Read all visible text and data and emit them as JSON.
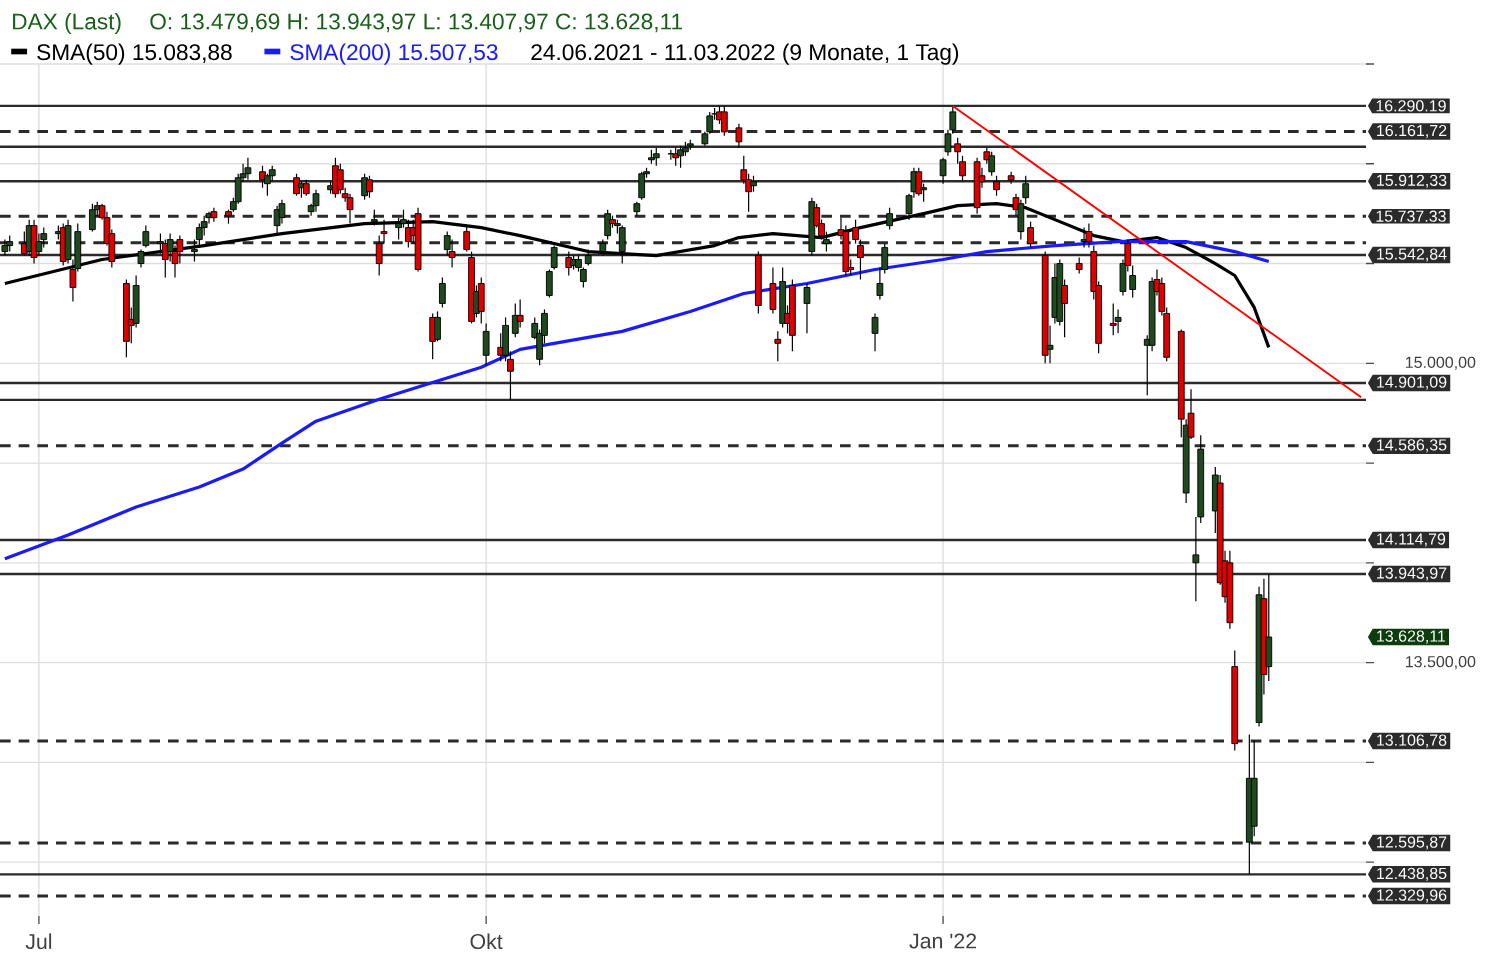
{
  "chart_data": {
    "type": "candlestick",
    "title": "DAX (Last)",
    "subtitle": "O: 13.479,69  H: 13.943,97  L: 13.407,97  C: 13.628,11",
    "x": [
      "2021-06-24",
      "2021-06-25",
      "2021-06-28",
      "2021-06-29",
      "2021-06-30",
      "2021-07-01",
      "2021-07-02",
      "2021-07-05",
      "2021-07-06",
      "2021-07-07",
      "2021-07-08",
      "2021-07-09",
      "2021-07-12",
      "2021-07-13",
      "2021-07-14",
      "2021-07-15",
      "2021-07-16",
      "2021-07-19",
      "2021-07-20",
      "2021-07-21",
      "2021-07-22",
      "2021-07-23",
      "2021-07-26",
      "2021-07-27",
      "2021-07-28",
      "2021-07-29",
      "2021-07-30",
      "2021-08-02",
      "2021-08-03",
      "2021-08-04",
      "2021-08-05",
      "2021-08-06",
      "2021-08-09",
      "2021-08-10",
      "2021-08-11",
      "2021-08-12",
      "2021-08-13",
      "2021-08-16",
      "2021-08-17",
      "2021-08-18",
      "2021-08-19",
      "2021-08-20",
      "2021-08-23",
      "2021-08-24",
      "2021-08-25",
      "2021-08-26",
      "2021-08-27",
      "2021-08-30",
      "2021-08-31",
      "2021-09-01",
      "2021-09-02",
      "2021-09-03",
      "2021-09-06",
      "2021-09-07",
      "2021-09-08",
      "2021-09-09",
      "2021-09-10",
      "2021-09-13",
      "2021-09-14",
      "2021-09-15",
      "2021-09-16",
      "2021-09-17",
      "2021-09-20",
      "2021-09-21",
      "2021-09-22",
      "2021-09-23",
      "2021-09-24",
      "2021-09-27",
      "2021-09-28",
      "2021-09-29",
      "2021-09-30",
      "2021-10-01",
      "2021-10-04",
      "2021-10-05",
      "2021-10-06",
      "2021-10-07",
      "2021-10-08",
      "2021-10-11",
      "2021-10-12",
      "2021-10-13",
      "2021-10-14",
      "2021-10-15",
      "2021-10-18",
      "2021-10-19",
      "2021-10-20",
      "2021-10-21",
      "2021-10-22",
      "2021-10-25",
      "2021-10-26",
      "2021-10-27",
      "2021-10-28",
      "2021-10-29",
      "2021-11-01",
      "2021-11-02",
      "2021-11-03",
      "2021-11-04",
      "2021-11-05",
      "2021-11-08",
      "2021-11-09",
      "2021-11-10",
      "2021-11-11",
      "2021-11-12",
      "2021-11-15",
      "2021-11-16",
      "2021-11-17",
      "2021-11-18",
      "2021-11-19",
      "2021-11-22",
      "2021-11-23",
      "2021-11-24",
      "2021-11-25",
      "2021-11-26",
      "2021-11-29",
      "2021-11-30",
      "2021-12-01",
      "2021-12-02",
      "2021-12-03",
      "2021-12-06",
      "2021-12-07",
      "2021-12-08",
      "2021-12-09",
      "2021-12-10",
      "2021-12-13",
      "2021-12-14",
      "2021-12-15",
      "2021-12-16",
      "2021-12-17",
      "2021-12-20",
      "2021-12-21",
      "2021-12-22",
      "2021-12-23",
      "2021-12-27",
      "2021-12-28",
      "2021-12-29",
      "2021-12-30",
      "2022-01-03",
      "2022-01-04",
      "2022-01-05",
      "2022-01-06",
      "2022-01-07",
      "2022-01-10",
      "2022-01-11",
      "2022-01-12",
      "2022-01-13",
      "2022-01-14",
      "2022-01-17",
      "2022-01-18",
      "2022-01-19",
      "2022-01-20",
      "2022-01-21",
      "2022-01-24",
      "2022-01-25",
      "2022-01-26",
      "2022-01-27",
      "2022-01-28",
      "2022-01-31",
      "2022-02-01",
      "2022-02-02",
      "2022-02-03",
      "2022-02-04",
      "2022-02-07",
      "2022-02-08",
      "2022-02-09",
      "2022-02-10",
      "2022-02-11",
      "2022-02-14",
      "2022-02-15",
      "2022-02-16",
      "2022-02-17",
      "2022-02-18",
      "2022-02-21",
      "2022-02-22",
      "2022-02-23",
      "2022-02-24",
      "2022-02-25",
      "2022-02-28",
      "2022-03-01",
      "2022-03-02",
      "2022-03-03",
      "2022-03-04",
      "2022-03-07",
      "2022-03-08",
      "2022-03-09",
      "2022-03-10",
      "2022-03-11"
    ],
    "ohlc": [
      [
        15560,
        15620,
        15540,
        15590
      ],
      [
        15590,
        15640,
        15560,
        15610
      ],
      [
        15600,
        15660,
        15540,
        15550
      ],
      [
        15560,
        15720,
        15540,
        15690
      ],
      [
        15690,
        15720,
        15500,
        15530
      ],
      [
        15560,
        15650,
        15540,
        15610
      ],
      [
        15620,
        15680,
        15580,
        15650
      ],
      [
        15650,
        15690,
        15620,
        15660
      ],
      [
        15680,
        15700,
        15490,
        15510
      ],
      [
        15520,
        15720,
        15500,
        15690
      ],
      [
        15470,
        15520,
        15310,
        15380
      ],
      [
        15475,
        15700,
        15460,
        15660
      ],
      [
        15670,
        15800,
        15660,
        15770
      ],
      [
        15770,
        15810,
        15740,
        15790
      ],
      [
        15790,
        15800,
        15720,
        15730
      ],
      [
        15730,
        15760,
        15590,
        15600
      ],
      [
        15650,
        15670,
        15480,
        15510
      ],
      [
        15400,
        15420,
        15030,
        15110
      ],
      [
        15220,
        15280,
        15100,
        15190
      ],
      [
        15200,
        15440,
        15180,
        15390
      ],
      [
        15500,
        15570,
        15480,
        15560
      ],
      [
        15590,
        15690,
        15580,
        15660
      ],
      [
        15600,
        15650,
        15550,
        15610
      ],
      [
        15600,
        15620,
        15430,
        15520
      ],
      [
        15560,
        15650,
        15510,
        15620
      ],
      [
        15560,
        15590,
        15430,
        15500
      ],
      [
        15620,
        15640,
        15500,
        15560
      ],
      [
        15560,
        15620,
        15510,
        15570
      ],
      [
        15620,
        15700,
        15580,
        15680
      ],
      [
        15680,
        15740,
        15640,
        15710
      ],
      [
        15730,
        15760,
        15700,
        15750
      ],
      [
        15760,
        15780,
        15710,
        15730
      ],
      [
        15760,
        15770,
        15700,
        15740
      ],
      [
        15770,
        15830,
        15760,
        15810
      ],
      [
        15810,
        15950,
        15800,
        15930
      ],
      [
        15930,
        16000,
        15910,
        15950
      ],
      [
        15950,
        16030,
        15920,
        15980
      ],
      [
        15960,
        15990,
        15880,
        15920
      ],
      [
        15900,
        15950,
        15840,
        15940
      ],
      [
        15940,
        15990,
        15910,
        15970
      ],
      [
        15690,
        15790,
        15650,
        15770
      ],
      [
        15730,
        15820,
        15700,
        15800
      ],
      [
        15930,
        15950,
        15840,
        15850
      ],
      [
        15880,
        15910,
        15830,
        15900
      ],
      [
        15900,
        15920,
        15840,
        15850
      ],
      [
        15760,
        15800,
        15740,
        15790
      ],
      [
        15790,
        15870,
        15760,
        15850
      ],
      [
        15870,
        15910,
        15850,
        15890
      ],
      [
        15990,
        16030,
        15830,
        15850
      ],
      [
        15970,
        16000,
        15850,
        15870
      ],
      [
        15850,
        15880,
        15810,
        15830
      ],
      [
        15830,
        15850,
        15700,
        15770
      ],
      [
        15840,
        15950,
        15820,
        15930
      ],
      [
        15920,
        15940,
        15830,
        15860
      ],
      [
        15710,
        15770,
        15690,
        15720
      ],
      [
        15600,
        15640,
        15440,
        15500
      ],
      [
        15660,
        15720,
        15600,
        15650
      ],
      [
        15680,
        15730,
        15620,
        15700
      ],
      [
        15700,
        15770,
        15680,
        15720
      ],
      [
        15680,
        15720,
        15580,
        15610
      ],
      [
        15680,
        15720,
        15600,
        15640
      ],
      [
        15750,
        15780,
        15460,
        15470
      ],
      [
        15230,
        15250,
        15020,
        15110
      ],
      [
        15120,
        15260,
        15110,
        15230
      ],
      [
        15300,
        15430,
        15280,
        15400
      ],
      [
        15570,
        15660,
        15540,
        15640
      ],
      [
        15560,
        15620,
        15480,
        15530
      ],
      [
        15660,
        15690,
        15560,
        15570
      ],
      [
        15530,
        15560,
        15200,
        15210
      ],
      [
        15250,
        15390,
        15230,
        15360
      ],
      [
        15400,
        15430,
        15200,
        15260
      ],
      [
        15040,
        15200,
        14990,
        15160
      ],
      [
        15080,
        15150,
        15010,
        15040
      ],
      [
        15040,
        15230,
        15010,
        15190
      ],
      [
        15020,
        15060,
        14817,
        14960
      ],
      [
        15150,
        15300,
        15130,
        15240
      ],
      [
        15240,
        15320,
        15180,
        15210
      ],
      [
        15130,
        15230,
        15120,
        15200
      ],
      [
        15020,
        15170,
        14990,
        15150
      ],
      [
        15140,
        15270,
        15100,
        15250
      ],
      [
        15340,
        15470,
        15330,
        15460
      ],
      [
        15480,
        15590,
        15470,
        15580
      ],
      [
        15530,
        15560,
        15440,
        15480
      ],
      [
        15490,
        15540,
        15470,
        15520
      ],
      [
        15480,
        15540,
        15460,
        15520
      ],
      [
        15410,
        15480,
        15380,
        15470
      ],
      [
        15500,
        15570,
        15490,
        15540
      ],
      [
        15560,
        15620,
        15540,
        15600
      ],
      [
        15640,
        15770,
        15620,
        15750
      ],
      [
        15720,
        15740,
        15680,
        15700
      ],
      [
        15690,
        15720,
        15650,
        15700
      ],
      [
        15560,
        15690,
        15500,
        15680
      ],
      [
        15760,
        15810,
        15740,
        15800
      ],
      [
        15830,
        15960,
        15820,
        15950
      ],
      [
        15950,
        15980,
        15930,
        15960
      ],
      [
        16020,
        16070,
        16000,
        16030
      ],
      [
        16030,
        16080,
        15990,
        16050
      ],
      [
        16050,
        16070,
        16020,
        16050
      ],
      [
        16050,
        16080,
        15990,
        16030
      ],
      [
        16040,
        16090,
        15980,
        16070
      ],
      [
        16060,
        16110,
        16040,
        16080
      ],
      [
        16090,
        16120,
        16070,
        16100
      ],
      [
        16100,
        16160,
        16090,
        16150
      ],
      [
        16160,
        16260,
        16150,
        16240
      ],
      [
        16250,
        16280,
        16220,
        16250
      ],
      [
        16260,
        16290.19,
        16200,
        16220
      ],
      [
        16260,
        16290,
        16140,
        16160
      ],
      [
        16180,
        16200,
        16080,
        16110
      ],
      [
        15970,
        16040,
        15900,
        15920
      ],
      [
        15920,
        15950,
        15760,
        15860
      ],
      [
        15890,
        15940,
        15860,
        15910
      ],
      [
        15540,
        15560,
        15250,
        15290
      ],
      [
        15400,
        15480,
        15250,
        15270
      ],
      [
        15120,
        15160,
        15010,
        15100
      ],
      [
        15200,
        15480,
        15180,
        15410
      ],
      [
        15250,
        15290,
        15150,
        15200
      ],
      [
        15390,
        15420,
        15060,
        15140
      ],
      [
        15300,
        15400,
        15150,
        15380
      ],
      [
        15560,
        15830,
        15540,
        15810
      ],
      [
        15780,
        15800,
        15680,
        15690
      ],
      [
        15700,
        15720,
        15620,
        15640
      ],
      [
        15600,
        15660,
        15560,
        15620
      ],
      [
        15670,
        15730,
        15620,
        15640
      ],
      [
        15660,
        15690,
        15440,
        15460
      ],
      [
        15480,
        15520,
        15440,
        15470
      ],
      [
        15680,
        15720,
        15600,
        15620
      ],
      [
        15590,
        15620,
        15420,
        15530
      ],
      [
        15150,
        15250,
        15060,
        15230
      ],
      [
        15340,
        15480,
        15320,
        15400
      ],
      [
        15470,
        15600,
        15450,
        15580
      ],
      [
        15690,
        15780,
        15670,
        15750
      ],
      [
        15750,
        15850,
        15720,
        15840
      ],
      [
        15860,
        15980,
        15830,
        15960
      ],
      [
        15960,
        15980,
        15840,
        15850
      ],
      [
        15870,
        15900,
        15810,
        15880
      ],
      [
        15940,
        16030,
        15900,
        16020
      ],
      [
        16060,
        16170,
        16040,
        16150
      ],
      [
        16170,
        16285,
        16150,
        16260
      ],
      [
        16100,
        16130,
        16000,
        16060
      ],
      [
        16010,
        16040,
        15910,
        15940
      ],
      [
        16010,
        16030,
        15750,
        15780
      ],
      [
        15940,
        15980,
        15880,
        15910
      ],
      [
        16060,
        16080,
        16000,
        16020
      ],
      [
        15960,
        16060,
        15940,
        16040
      ],
      [
        15910,
        15940,
        15840,
        15870
      ],
      [
        15940,
        15960,
        15900,
        15920
      ],
      [
        15830,
        15850,
        15740,
        15770
      ],
      [
        15660,
        15820,
        15620,
        15800
      ],
      [
        15830,
        15940,
        15800,
        15900
      ],
      [
        15680,
        15710,
        15580,
        15600
      ],
      [
        15540,
        15560,
        15000,
        15040
      ],
      [
        15070,
        15190,
        15000,
        15090
      ],
      [
        15230,
        15500,
        15200,
        15430
      ],
      [
        15210,
        15520,
        15190,
        15500
      ],
      [
        15390,
        15420,
        15130,
        15300
      ],
      [
        15500,
        15530,
        15450,
        15470
      ],
      [
        15610,
        15680,
        15580,
        15620
      ],
      [
        15660,
        15700,
        15580,
        15610
      ],
      [
        15560,
        15590,
        15320,
        15360
      ],
      [
        15390,
        15410,
        15050,
        15100
      ],
      [
        15200,
        15300,
        15140,
        15190
      ],
      [
        15210,
        15270,
        15150,
        15230
      ],
      [
        15360,
        15520,
        15340,
        15500
      ],
      [
        15600,
        15620,
        15460,
        15490
      ],
      [
        15370,
        15490,
        15330,
        15440
      ],
      [
        15090,
        15140,
        14840,
        15120
      ],
      [
        15090,
        15430,
        15060,
        15410
      ],
      [
        15420,
        15470,
        15340,
        15360
      ],
      [
        15400,
        15430,
        15240,
        15260
      ],
      [
        15250,
        15280,
        15010,
        15030
      ],
      [
        15160,
        15170,
        14630,
        14720
      ],
      [
        14350,
        14720,
        14300,
        14690
      ],
      [
        14750,
        14870,
        14620,
        14630
      ],
      [
        14000,
        14230,
        13808,
        14040
      ],
      [
        14230,
        14640,
        14200,
        14570
      ],
      [
        14260,
        14480,
        14150,
        14440
      ],
      [
        14400,
        14440,
        13890,
        13900
      ],
      [
        14010,
        14060,
        13800,
        13830
      ],
      [
        14000,
        14060,
        13670,
        13700
      ],
      [
        13480,
        13560,
        13060,
        13094
      ],
      [
        12600,
        13140,
        12438.85,
        12920
      ],
      [
        12680,
        13110,
        12630,
        12920
      ],
      [
        13200,
        13880,
        13180,
        13840
      ],
      [
        13820,
        13920,
        13340,
        13440
      ],
      [
        13479.69,
        13943.97,
        13407.97,
        13628.11
      ]
    ],
    "series": [
      {
        "name": "SMA(50) 15.083,88",
        "type": "line",
        "color": "#000000",
        "x": [
          "2021-06-24",
          "2021-07-14",
          "2021-08-04",
          "2021-08-20",
          "2021-09-06",
          "2021-09-20",
          "2021-09-30",
          "2021-10-08",
          "2021-10-22",
          "2021-11-05",
          "2021-11-17",
          "2021-11-22",
          "2021-11-29",
          "2021-12-09",
          "2021-12-17",
          "2021-12-30",
          "2022-01-06",
          "2022-01-14",
          "2022-01-20",
          "2022-01-26",
          "2022-02-03",
          "2022-02-09",
          "2022-02-16",
          "2022-02-22",
          "2022-02-28",
          "2022-03-04",
          "2022-03-08",
          "2022-03-11"
        ],
        "values": [
          15400,
          15520,
          15590,
          15650,
          15700,
          15710,
          15680,
          15640,
          15560,
          15540,
          15590,
          15630,
          15650,
          15630,
          15680,
          15750,
          15790,
          15800,
          15780,
          15720,
          15640,
          15610,
          15630,
          15580,
          15500,
          15440,
          15280,
          15080
        ]
      },
      {
        "name": "SMA(200) 15.507,53",
        "type": "line",
        "color": "#1a1aff",
        "x": [
          "2021-06-24",
          "2021-07-07",
          "2021-07-21",
          "2021-08-03",
          "2021-08-12",
          "2021-08-20",
          "2021-08-27",
          "2021-09-09",
          "2021-09-30",
          "2021-10-08",
          "2021-10-29",
          "2021-11-12",
          "2021-11-23",
          "2021-12-06",
          "2021-12-20",
          "2022-01-03",
          "2022-01-12",
          "2022-01-26",
          "2022-02-08",
          "2022-02-22",
          "2022-03-04",
          "2022-03-11"
        ],
        "values": [
          14020,
          14140,
          14280,
          14380,
          14470,
          14600,
          14710,
          14820,
          14980,
          15070,
          15160,
          15260,
          15350,
          15400,
          15470,
          15520,
          15560,
          15590,
          15610,
          15610,
          15560,
          15510
        ]
      },
      {
        "type": "line",
        "color": "#ff0000",
        "x": [
          "2022-01-05",
          "2022-03-30"
        ],
        "values": [
          16290,
          14830
        ]
      }
    ],
    "ref_lines": [
      {
        "axis": "y",
        "value": 16290.19,
        "label": "16.290.19",
        "color": "#2b2b2b",
        "line_style": "solid"
      },
      {
        "axis": "y",
        "value": 16161.72,
        "label": "16.161,72",
        "color": "#2b2b2b",
        "line_style": "dashed"
      },
      {
        "axis": "y",
        "value": 16085,
        "label": null,
        "color": "#2b2b2b",
        "line_style": "solid"
      },
      {
        "axis": "y",
        "value": 15912.33,
        "label": "15.912,33",
        "color": "#2b2b2b",
        "line_style": "solid"
      },
      {
        "axis": "y",
        "value": 15737.33,
        "label": "15.737.33",
        "color": "#2b2b2b",
        "line_style": "dashed"
      },
      {
        "axis": "y",
        "value": 15604,
        "label": null,
        "color": "#2b2b2b",
        "line_style": "dashed"
      },
      {
        "axis": "y",
        "value": 15542.84,
        "label": "15.542,84",
        "color": "#2b2b2b",
        "line_style": "solid"
      },
      {
        "axis": "y",
        "value": 14901.09,
        "label": "14.901,09",
        "color": "#2b2b2b",
        "line_style": "solid"
      },
      {
        "axis": "y",
        "value": 14816.71,
        "label": null,
        "color": "#2b2b2b",
        "line_style": "solid"
      },
      {
        "axis": "y",
        "value": 14586.35,
        "label": "14.586,35",
        "color": "#2b2b2b",
        "line_style": "dashed"
      },
      {
        "axis": "y",
        "value": 14114.79,
        "label": "14.114,79",
        "color": "#2b2b2b",
        "line_style": "solid"
      },
      {
        "axis": "y",
        "value": 13943.97,
        "label": "13.943,97",
        "color": "#2b2b2b",
        "line_style": "solid"
      },
      {
        "axis": "y",
        "value": 13106.78,
        "label": "13.106,78",
        "color": "#2b2b2b",
        "line_style": "dashed"
      },
      {
        "axis": "y",
        "value": 12595.87,
        "label": "12.595,87",
        "color": "#2b2b2b",
        "line_style": "dashed"
      },
      {
        "axis": "y",
        "value": 12438.85,
        "label": "12.438,85",
        "color": "#2b2b2b",
        "line_style": "solid"
      },
      {
        "axis": "y",
        "value": 12329.96,
        "label": "12.329,96",
        "color": "#2b2b2b",
        "line_style": "dashed"
      }
    ],
    "annotations": [
      "24.06.2021 - 11.03.2022 (9 Monate, 1 Tag)",
      "13.628,11"
    ],
    "xlim": [
      "2021-06-23",
      "2022-03-31"
    ],
    "xticks": [
      {
        "value": "2021-07-01",
        "label": "Jul"
      },
      {
        "value": "2021-10-01",
        "label": "Okt"
      },
      {
        "value": "2022-01-03",
        "label": "Jan '22"
      }
    ],
    "ylim": [
      12230,
      16500
    ],
    "yticks": [
      {
        "value": 16500,
        "label": null
      },
      {
        "value": 16000,
        "label": null
      },
      {
        "value": 15500,
        "label": null
      },
      {
        "value": 15000,
        "label": "15.000,00"
      },
      {
        "value": 14500,
        "label": null
      },
      {
        "value": 14000,
        "label": null
      },
      {
        "value": 13500,
        "label": "13.500,00"
      },
      {
        "value": 13000,
        "label": null
      },
      {
        "value": 12500,
        "label": null
      }
    ],
    "grid": true,
    "legend": "top left"
  }
}
